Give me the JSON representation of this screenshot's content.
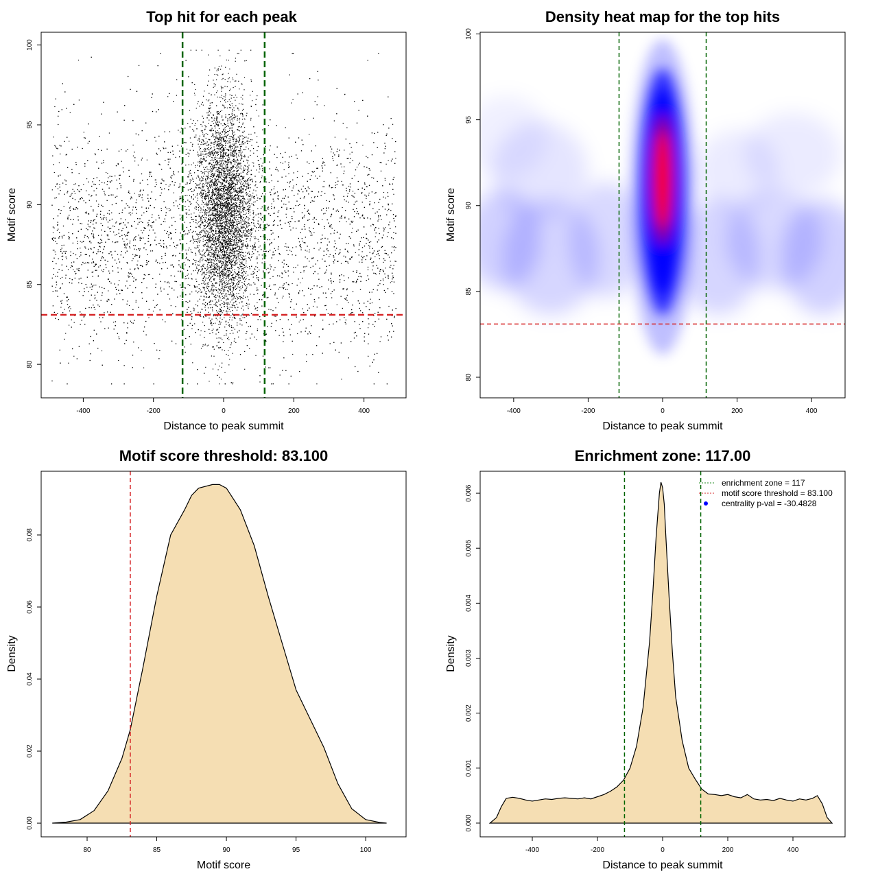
{
  "chart_data": [
    {
      "type": "scatter",
      "title": "Top hit for each peak",
      "xlabel": "Distance to peak summit",
      "ylabel": "Motif score",
      "xlim": [
        -520,
        520
      ],
      "ylim": [
        77.9,
        100.8
      ],
      "x_ticks": [
        "-400",
        "-200",
        "0",
        "200",
        "400"
      ],
      "y_ticks": [
        "80",
        "85",
        "90",
        "95",
        "100"
      ],
      "points_summary": {
        "n_points_approx": 10000,
        "x_range": [
          -490,
          490
        ],
        "background_score_mean": 87.5,
        "central_cluster": {
          "x_center": 0,
          "x_sd": 40,
          "score_mean": 89.5,
          "score_sd": 3.5
        }
      },
      "vlines": [
        -117,
        117
      ],
      "hline": 83.1,
      "colors": {
        "points": "#000000",
        "vlines": "#006400",
        "hline": "#d62728"
      }
    },
    {
      "type": "heatmap",
      "title": "Density heat map for the top hits",
      "xlabel": "Distance to peak summit",
      "ylabel": "Motif score",
      "xlim": [
        -490,
        490
      ],
      "ylim": [
        78.8,
        100.1
      ],
      "x_ticks": [
        "-400",
        "-200",
        "0",
        "200",
        "400"
      ],
      "y_ticks": [
        "80",
        "85",
        "90",
        "95",
        "100"
      ],
      "density_peak": {
        "x": 0,
        "y": 91.5
      },
      "vlines": [
        -117,
        117
      ],
      "hline": 83.1,
      "colors": {
        "low": "#ffffff",
        "mid": "#0000ff",
        "high": "#ff0000",
        "vlines": "#006400",
        "hline": "#d62728"
      }
    },
    {
      "type": "area",
      "title": "Motif score threshold: 83.100",
      "xlabel": "Motif score",
      "ylabel": "Density",
      "xlim": [
        76.7,
        102.9
      ],
      "ylim": [
        -0.0038,
        0.0977
      ],
      "x_ticks": [
        "80",
        "85",
        "90",
        "95",
        "100"
      ],
      "y_ticks": [
        "0.00",
        "0.02",
        "0.04",
        "0.06",
        "0.08"
      ],
      "x": [
        77.5,
        78.5,
        79.5,
        80.5,
        81.5,
        82.5,
        83.1,
        84,
        85,
        86,
        87,
        87.5,
        88,
        89,
        89.5,
        90,
        91,
        92,
        93,
        94,
        95,
        96,
        97,
        98,
        99,
        100,
        101,
        101.5
      ],
      "values": [
        0.0,
        0.0003,
        0.001,
        0.0035,
        0.009,
        0.018,
        0.026,
        0.043,
        0.063,
        0.08,
        0.087,
        0.091,
        0.093,
        0.094,
        0.094,
        0.093,
        0.087,
        0.077,
        0.063,
        0.05,
        0.037,
        0.029,
        0.021,
        0.011,
        0.004,
        0.001,
        0.0002,
        0.0
      ],
      "vline": 83.1,
      "colors": {
        "fill": "#f5deb3",
        "line": "#000000",
        "vline": "#d62728"
      }
    },
    {
      "type": "area",
      "title": "Enrichment zone: 117.00",
      "xlabel": "Distance to peak summit",
      "ylabel": "Density",
      "xlim": [
        -560,
        560
      ],
      "ylim": [
        -0.00025,
        0.0064
      ],
      "x_ticks": [
        "-400",
        "-200",
        "0",
        "200",
        "400"
      ],
      "y_ticks": [
        "0.000",
        "0.001",
        "0.002",
        "0.003",
        "0.004",
        "0.005",
        "0.006"
      ],
      "x": [
        -530,
        -510,
        -495,
        -480,
        -460,
        -440,
        -420,
        -400,
        -380,
        -360,
        -340,
        -320,
        -300,
        -280,
        -260,
        -240,
        -220,
        -200,
        -180,
        -160,
        -140,
        -120,
        -100,
        -80,
        -60,
        -40,
        -30,
        -20,
        -10,
        -5,
        0,
        5,
        10,
        20,
        30,
        40,
        60,
        80,
        100,
        120,
        140,
        160,
        180,
        200,
        220,
        240,
        260,
        280,
        300,
        320,
        340,
        360,
        380,
        400,
        420,
        440,
        460,
        475,
        490,
        505,
        520
      ],
      "values": [
        0.0,
        0.0001,
        0.0003,
        0.00045,
        0.00047,
        0.00045,
        0.00042,
        0.0004,
        0.00042,
        0.00044,
        0.00043,
        0.00045,
        0.00046,
        0.00045,
        0.00044,
        0.00046,
        0.00044,
        0.00048,
        0.00052,
        0.00058,
        0.00066,
        0.00078,
        0.001,
        0.0014,
        0.0021,
        0.0033,
        0.0042,
        0.0052,
        0.006,
        0.0062,
        0.0061,
        0.0058,
        0.0052,
        0.0041,
        0.0031,
        0.0023,
        0.0015,
        0.001,
        0.0008,
        0.00062,
        0.00053,
        0.00052,
        0.0005,
        0.00052,
        0.00048,
        0.00046,
        0.00052,
        0.00044,
        0.00042,
        0.00043,
        0.00041,
        0.00045,
        0.00042,
        0.0004,
        0.00044,
        0.00042,
        0.00045,
        0.0005,
        0.00035,
        0.0001,
        0.0
      ],
      "vlines": [
        -117,
        117
      ],
      "legend": {
        "placement": "top-right",
        "entries": [
          "enrichment zone = 117",
          "motif score threshold = 83.100",
          "centrality p-val = -30.4828"
        ]
      },
      "colors": {
        "fill": "#f5deb3",
        "line": "#000000",
        "vlines": "#006400",
        "legend_green": "#228b22",
        "legend_red": "#d62728",
        "legend_blue": "#0000ff"
      }
    }
  ]
}
